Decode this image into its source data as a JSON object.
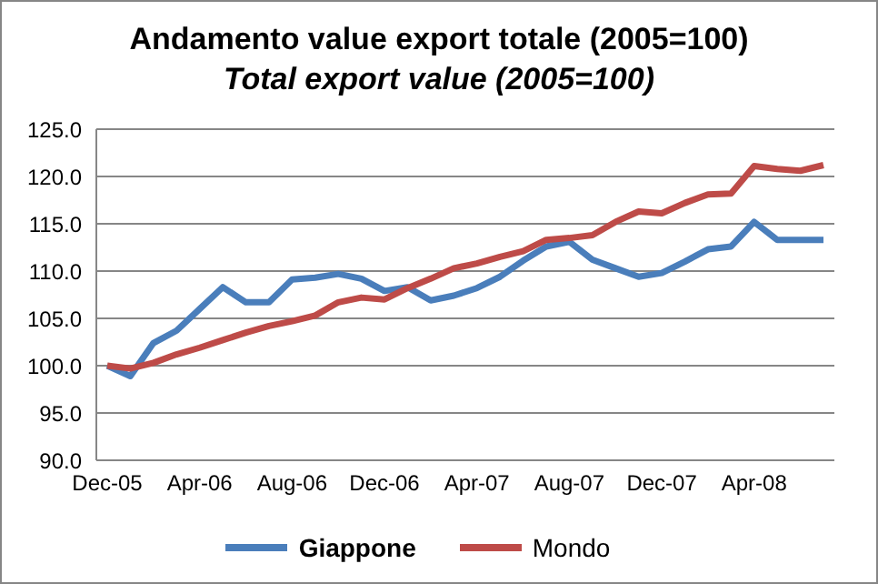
{
  "chart_data": {
    "type": "line",
    "title": "Andamento value export totale  (2005=100)",
    "subtitle": "Total export value (2005=100)",
    "categories": [
      "Dec-05",
      null,
      null,
      null,
      "Apr-06",
      null,
      null,
      null,
      "Aug-06",
      null,
      null,
      null,
      "Dec-06",
      null,
      null,
      null,
      "Apr-07",
      null,
      null,
      null,
      "Aug-07",
      null,
      null,
      null,
      "Dec-07",
      null,
      null,
      null,
      "Apr-08",
      null,
      null,
      null
    ],
    "series": [
      {
        "name": "Giappone",
        "color": "#4a7ebb",
        "values": [
          100,
          98.9,
          102.4,
          103.7,
          106,
          108.3,
          106.7,
          106.7,
          109.1,
          109.3,
          109.7,
          109.2,
          107.9,
          108.3,
          106.9,
          107.4,
          108.2,
          109.4,
          111.1,
          112.6,
          113.1,
          111.2,
          110.3,
          109.4,
          109.8,
          111.0,
          112.3,
          112.6,
          115.2,
          113.3,
          113.3,
          113.3
        ]
      },
      {
        "name": "Mondo",
        "color": "#be4b48",
        "values": [
          100,
          99.7,
          100.3,
          101.2,
          101.9,
          102.7,
          103.5,
          104.2,
          104.7,
          105.3,
          106.7,
          107.2,
          107.0,
          108.2,
          109.2,
          110.3,
          110.8,
          111.5,
          112.1,
          113.3,
          113.5,
          113.8,
          115.2,
          116.3,
          116.1,
          117.2,
          118.1,
          118.2,
          121.1,
          120.8,
          120.6,
          121.2
        ]
      }
    ],
    "ylim": [
      90,
      125
    ],
    "yticks": [
      {
        "value": 90,
        "label": "90.0"
      },
      {
        "value": 95,
        "label": "95.0"
      },
      {
        "value": 100,
        "label": "100.0"
      },
      {
        "value": 105,
        "label": "105.0"
      },
      {
        "value": 110,
        "label": "110.0"
      },
      {
        "value": 115,
        "label": "115.0"
      },
      {
        "value": 120,
        "label": "120.0"
      },
      {
        "value": 125,
        "label": "125.0"
      }
    ],
    "grid": "y",
    "legend": "bottom",
    "marker": "none",
    "line_style": "solid"
  }
}
